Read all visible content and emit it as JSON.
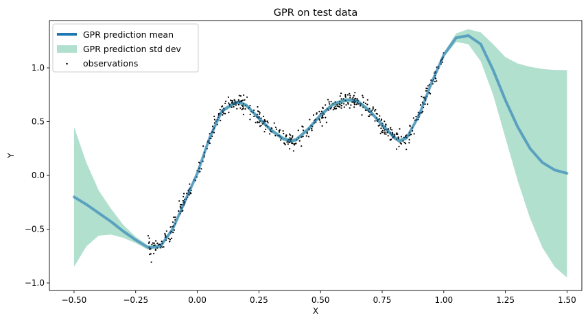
{
  "chart_data": {
    "type": "line",
    "title": "GPR on test data",
    "xlabel": "X",
    "ylabel": "Y",
    "xlim": [
      -0.6,
      1.56
    ],
    "ylim": [
      -1.07,
      1.44
    ],
    "xticks": [
      -0.5,
      -0.25,
      0.0,
      0.25,
      0.5,
      0.75,
      1.0,
      1.25,
      1.5
    ],
    "xtick_labels": [
      "−0.50",
      "−0.25",
      "0.00",
      "0.25",
      "0.50",
      "0.75",
      "1.00",
      "1.25",
      "1.50"
    ],
    "yticks": [
      -1.0,
      -0.5,
      0.0,
      0.5,
      1.0
    ],
    "ytick_labels": [
      "−1.0",
      "−0.5",
      "0.0",
      "0.5",
      "1.0"
    ],
    "grid": false,
    "legend_position": "top-left",
    "colors": {
      "mean": "#1f77b4",
      "std_band": "#66c2a0",
      "observations": "#000000"
    },
    "legend": [
      {
        "label": "GPR prediction mean",
        "kind": "line"
      },
      {
        "label": "GPR prediction std dev",
        "kind": "patch"
      },
      {
        "label": "observations",
        "kind": "marker"
      }
    ],
    "series": [
      {
        "name": "GPR prediction mean",
        "x": [
          -0.5,
          -0.45,
          -0.4,
          -0.35,
          -0.3,
          -0.25,
          -0.2,
          -0.15,
          -0.1,
          -0.05,
          0.0,
          0.05,
          0.1,
          0.15,
          0.17,
          0.2,
          0.25,
          0.3,
          0.35,
          0.38,
          0.4,
          0.45,
          0.5,
          0.55,
          0.6,
          0.62,
          0.65,
          0.7,
          0.75,
          0.8,
          0.82,
          0.85,
          0.9,
          0.95,
          1.0,
          1.05,
          1.1,
          1.15,
          1.2,
          1.25,
          1.3,
          1.35,
          1.4,
          1.45,
          1.5
        ],
        "y": [
          -0.2,
          -0.27,
          -0.35,
          -0.43,
          -0.52,
          -0.6,
          -0.67,
          -0.66,
          -0.5,
          -0.24,
          0.02,
          0.35,
          0.6,
          0.67,
          0.68,
          0.65,
          0.53,
          0.42,
          0.34,
          0.32,
          0.33,
          0.43,
          0.56,
          0.66,
          0.7,
          0.7,
          0.69,
          0.6,
          0.47,
          0.35,
          0.32,
          0.35,
          0.56,
          0.86,
          1.12,
          1.28,
          1.3,
          1.22,
          0.98,
          0.7,
          0.45,
          0.25,
          0.12,
          0.05,
          0.02
        ]
      },
      {
        "name": "GPR prediction std dev",
        "x": [
          -0.5,
          -0.45,
          -0.4,
          -0.35,
          -0.3,
          -0.25,
          -0.2,
          -0.15,
          -0.1,
          -0.05,
          0.0,
          0.05,
          0.1,
          0.15,
          0.17,
          0.2,
          0.25,
          0.3,
          0.35,
          0.38,
          0.4,
          0.45,
          0.5,
          0.55,
          0.6,
          0.62,
          0.65,
          0.7,
          0.75,
          0.8,
          0.82,
          0.85,
          0.9,
          0.95,
          1.0,
          1.05,
          1.1,
          1.15,
          1.2,
          1.25,
          1.3,
          1.35,
          1.4,
          1.45,
          1.5
        ],
        "lower": [
          -0.85,
          -0.66,
          -0.56,
          -0.55,
          -0.58,
          -0.63,
          -0.69,
          -0.68,
          -0.52,
          -0.26,
          0.0,
          0.33,
          0.58,
          0.65,
          0.66,
          0.63,
          0.51,
          0.4,
          0.32,
          0.3,
          0.31,
          0.41,
          0.54,
          0.64,
          0.68,
          0.68,
          0.67,
          0.58,
          0.45,
          0.33,
          0.3,
          0.33,
          0.54,
          0.84,
          1.1,
          1.24,
          1.22,
          1.06,
          0.75,
          0.35,
          -0.05,
          -0.4,
          -0.67,
          -0.85,
          -0.95
        ],
        "upper": [
          0.45,
          0.12,
          -0.14,
          -0.31,
          -0.46,
          -0.57,
          -0.65,
          -0.64,
          -0.48,
          -0.22,
          0.04,
          0.37,
          0.62,
          0.69,
          0.7,
          0.67,
          0.55,
          0.44,
          0.36,
          0.34,
          0.35,
          0.45,
          0.58,
          0.68,
          0.72,
          0.72,
          0.71,
          0.62,
          0.49,
          0.37,
          0.34,
          0.37,
          0.58,
          0.88,
          1.14,
          1.32,
          1.36,
          1.33,
          1.22,
          1.1,
          1.04,
          1.01,
          0.99,
          0.98,
          0.98
        ]
      }
    ],
    "observations": {
      "name": "observations",
      "x_range": [
        -0.2,
        1.0
      ],
      "noise_std": 0.04,
      "count": 600
    }
  }
}
